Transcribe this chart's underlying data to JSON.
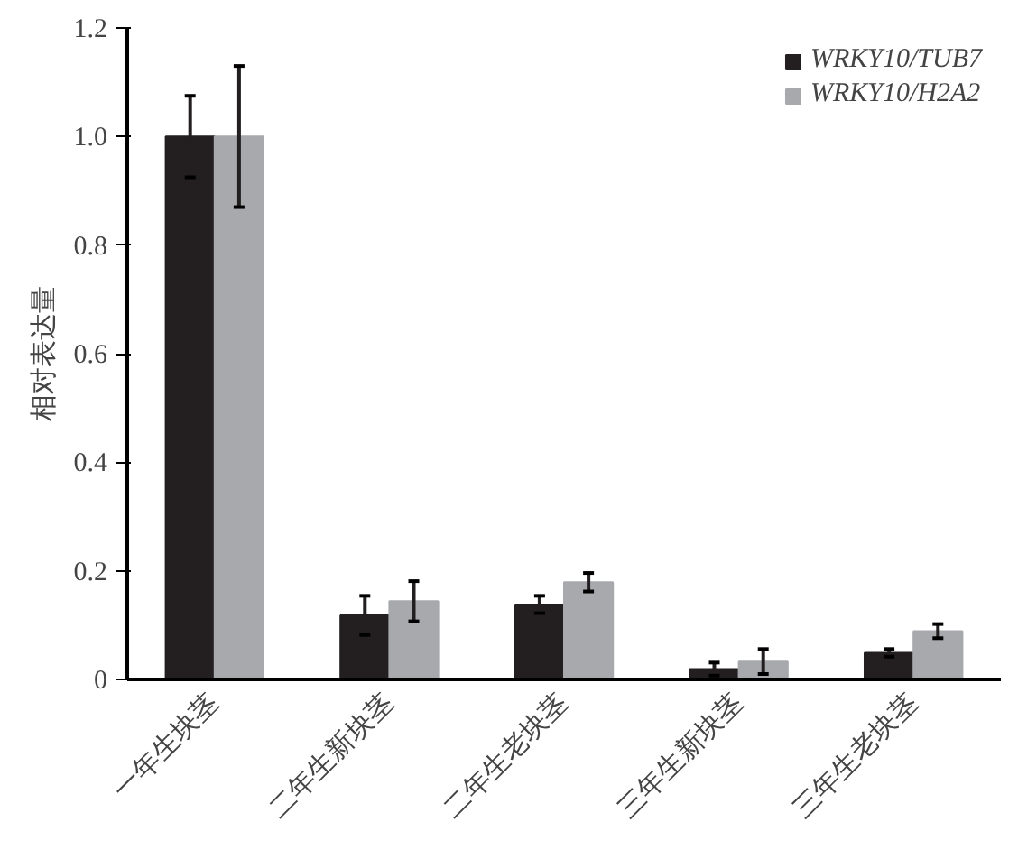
{
  "chart_data": {
    "type": "bar",
    "ylabel": "相对表达量",
    "categories": [
      "一年生块茎",
      "二年生新块茎",
      "二年生老块茎",
      "三年生新块茎",
      "三年生老块茎"
    ],
    "series": [
      {
        "name": "WRKY10/TUB7",
        "color": "#231f20",
        "values": [
          1.0,
          0.118,
          0.138,
          0.019,
          0.049
        ],
        "errors": [
          0.075,
          0.036,
          0.016,
          0.012,
          0.007
        ]
      },
      {
        "name": "WRKY10/H2A2",
        "color": "#a7a9ac",
        "values": [
          1.0,
          0.144,
          0.179,
          0.033,
          0.089
        ],
        "errors": [
          0.13,
          0.037,
          0.017,
          0.023,
          0.013
        ]
      }
    ],
    "ylim": [
      0,
      1.2
    ],
    "yticks": [
      0,
      0.2,
      0.4,
      0.6,
      0.8,
      {
        "value": 1.0,
        "label": "1.0"
      },
      1.2
    ],
    "grid": false,
    "legend": "top right"
  }
}
